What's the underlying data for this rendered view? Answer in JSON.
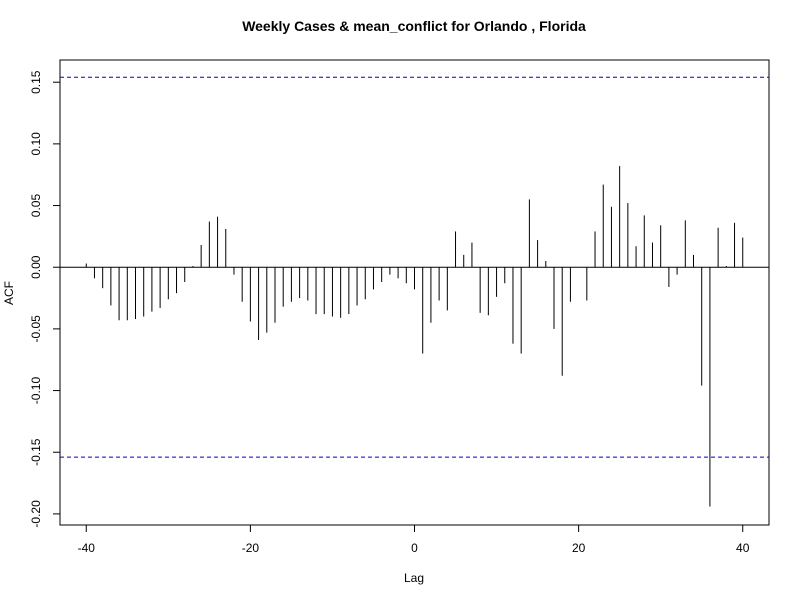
{
  "chart_data": {
    "type": "bar",
    "title": "Weekly Cases & mean_conflict for Orlando , Florida",
    "x_label": "Lag",
    "y_label": "ACF",
    "x": [
      -40,
      -39,
      -38,
      -37,
      -36,
      -35,
      -34,
      -33,
      -32,
      -31,
      -30,
      -29,
      -28,
      -27,
      -26,
      -25,
      -24,
      -23,
      -22,
      -21,
      -20,
      -19,
      -18,
      -17,
      -16,
      -15,
      -14,
      -13,
      -12,
      -11,
      -10,
      -9,
      -8,
      -7,
      -6,
      -5,
      -4,
      -3,
      -2,
      -1,
      0,
      1,
      2,
      3,
      4,
      5,
      6,
      7,
      8,
      9,
      10,
      11,
      12,
      13,
      14,
      15,
      16,
      17,
      18,
      19,
      20,
      21,
      22,
      23,
      24,
      25,
      26,
      27,
      28,
      29,
      30,
      31,
      32,
      33,
      34,
      35,
      36,
      37,
      38,
      39,
      40
    ],
    "values": [
      0.003,
      -0.009,
      -0.017,
      -0.031,
      -0.043,
      -0.043,
      -0.042,
      -0.04,
      -0.036,
      -0.033,
      -0.026,
      -0.021,
      -0.012,
      0.001,
      0.018,
      0.037,
      0.041,
      0.031,
      -0.006,
      -0.028,
      -0.044,
      -0.059,
      -0.053,
      -0.045,
      -0.032,
      -0.028,
      -0.025,
      -0.027,
      -0.038,
      -0.038,
      -0.04,
      -0.041,
      -0.038,
      -0.031,
      -0.026,
      -0.018,
      -0.012,
      -0.006,
      -0.009,
      -0.013,
      -0.018,
      -0.07,
      -0.045,
      -0.027,
      -0.035,
      0.029,
      0.01,
      0.02,
      -0.037,
      -0.039,
      -0.024,
      -0.013,
      -0.062,
      -0.07,
      0.055,
      0.022,
      0.005,
      -0.05,
      -0.088,
      -0.028,
      0.0,
      -0.027,
      0.029,
      0.067,
      0.049,
      0.082,
      0.052,
      0.017,
      0.042,
      0.02,
      0.034,
      -0.016,
      -0.006,
      0.038,
      0.01,
      -0.096,
      -0.194,
      0.032,
      0.001,
      0.036,
      0.024
    ],
    "color": "#000000",
    "confidence_bounds": [
      -0.154,
      0.154
    ],
    "confidence_color": "#0000cc",
    "xlim": [
      -43.2,
      43.2
    ],
    "ylim": [
      -0.209,
      0.168
    ],
    "xticks": [
      -40,
      -20,
      0,
      20,
      40
    ],
    "yticks": [
      {
        "value": -0.2,
        "label": "-0.20"
      },
      -0.15,
      {
        "value": -0.1,
        "label": "-0.10"
      },
      -0.05,
      {
        "value": 0,
        "label": "0.00"
      },
      0.05,
      {
        "value": 0.1,
        "label": "0.10"
      },
      0.15
    ]
  }
}
